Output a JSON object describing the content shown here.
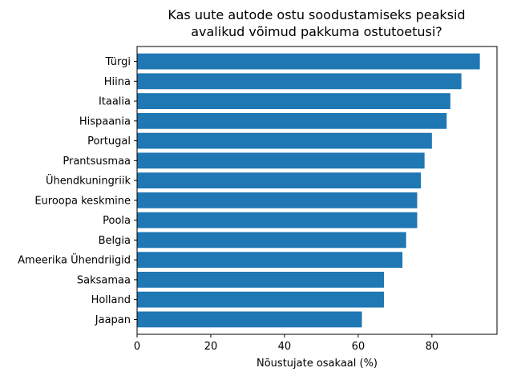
{
  "chart_data": {
    "type": "bar",
    "orientation": "horizontal",
    "title": "Kas uute autode ostu soodustamiseks peaksid\navalikud võimud pakkuma ostutoetusi?",
    "xlabel": "Nõustujate osakaal (%)",
    "ylabel": "",
    "xlim": [
      0,
      97.65
    ],
    "xticks": [
      0,
      20,
      40,
      60,
      80
    ],
    "grid": false,
    "color": "#1f77b4",
    "categories": [
      "Türgi",
      "Hiina",
      "Itaalia",
      "Hispaania",
      "Portugal",
      "Prantsusmaa",
      "Ühendkuningriik",
      "Euroopa keskmine",
      "Poola",
      "Belgia",
      "Ameerika Ühendriigid",
      "Saksamaa",
      "Holland",
      "Jaapan"
    ],
    "values": [
      93,
      88,
      85,
      84,
      80,
      78,
      77,
      76,
      76,
      73,
      72,
      67,
      67,
      61
    ]
  }
}
